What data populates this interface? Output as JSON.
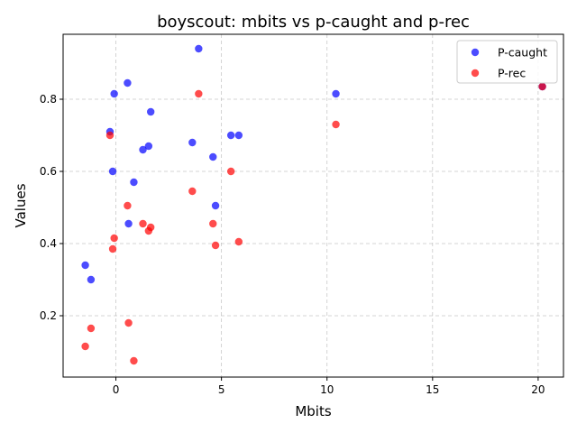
{
  "chart_data": {
    "type": "scatter",
    "title": "boyscout: mbits vs p-caught and p-rec",
    "xlabel": "Mbits",
    "ylabel": "Values",
    "xlim": [
      -2.5,
      21.2
    ],
    "ylim": [
      0.03,
      0.98
    ],
    "xticks": [
      0,
      5,
      10,
      15,
      20
    ],
    "xtick_labels": [
      "0",
      "5",
      "10",
      "15",
      "20"
    ],
    "yticks": [
      0.2,
      0.4,
      0.6,
      0.8
    ],
    "ytick_labels": [
      "0.2",
      "0.4",
      "0.6",
      "0.8"
    ],
    "grid": true,
    "legend_position": "top-right",
    "series": [
      {
        "name": "P-caught",
        "color": "#0000ff",
        "points": [
          [
            -1.45,
            0.34
          ],
          [
            -1.18,
            0.3
          ],
          [
            -0.28,
            0.71
          ],
          [
            -0.15,
            0.6
          ],
          [
            -0.08,
            0.815
          ],
          [
            0.55,
            0.845
          ],
          [
            0.6,
            0.455
          ],
          [
            0.85,
            0.57
          ],
          [
            1.28,
            0.66
          ],
          [
            1.55,
            0.67
          ],
          [
            1.65,
            0.765
          ],
          [
            3.62,
            0.68
          ],
          [
            3.92,
            0.94
          ],
          [
            4.6,
            0.64
          ],
          [
            4.72,
            0.505
          ],
          [
            5.45,
            0.7
          ],
          [
            5.82,
            0.7
          ],
          [
            10.42,
            0.815
          ],
          [
            20.2,
            0.835
          ]
        ]
      },
      {
        "name": "P-rec",
        "color": "#ff0000",
        "points": [
          [
            -1.45,
            0.115
          ],
          [
            -1.18,
            0.165
          ],
          [
            -0.28,
            0.7
          ],
          [
            -0.15,
            0.385
          ],
          [
            -0.08,
            0.415
          ],
          [
            0.55,
            0.505
          ],
          [
            0.6,
            0.18
          ],
          [
            0.85,
            0.075
          ],
          [
            1.28,
            0.455
          ],
          [
            1.55,
            0.435
          ],
          [
            1.65,
            0.445
          ],
          [
            3.62,
            0.545
          ],
          [
            3.92,
            0.815
          ],
          [
            4.6,
            0.455
          ],
          [
            4.72,
            0.395
          ],
          [
            5.45,
            0.6
          ],
          [
            5.82,
            0.405
          ],
          [
            10.42,
            0.73
          ],
          [
            20.2,
            0.835
          ]
        ]
      }
    ]
  }
}
